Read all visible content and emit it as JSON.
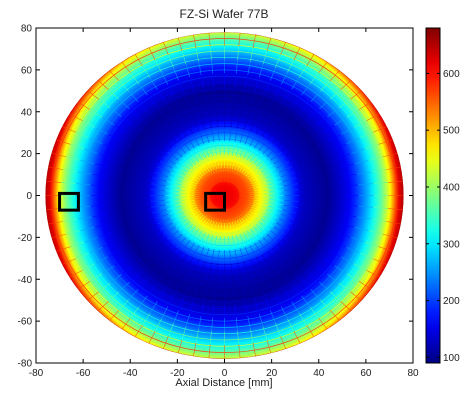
{
  "chart_data": {
    "type": "heatmap",
    "title": "FZ-Si Wafer 77B",
    "xlabel": "Axial Distance [mm]",
    "ylabel": "",
    "xlim": [
      -80,
      80
    ],
    "ylim": [
      -80,
      80
    ],
    "x_ticks": [
      -80,
      -60,
      -40,
      -20,
      0,
      20,
      40,
      60,
      80
    ],
    "y_ticks": [
      -80,
      -60,
      -40,
      -20,
      0,
      20,
      40,
      60,
      80
    ],
    "x_tick_labels": [
      "-80",
      "-60",
      "-40",
      "-20",
      "0",
      "20",
      "40",
      "60",
      "80"
    ],
    "y_tick_labels": [
      "-80",
      "-60",
      "-40",
      "-20",
      "0",
      "20",
      "40",
      "60",
      "80"
    ],
    "colorbar": {
      "range": [
        90,
        680
      ],
      "ticks": [
        100,
        200,
        300,
        400,
        500,
        600
      ],
      "tick_labels": [
        "100",
        "200",
        "300",
        "400",
        "500",
        "600"
      ],
      "colormap": "jet"
    },
    "wafer": {
      "center": [
        0,
        0
      ],
      "radius_x_mm": 76,
      "radius_y_mm": 78
    },
    "radial_profile": [
      {
        "r": 0,
        "value": 640
      },
      {
        "r": 10,
        "value": 560
      },
      {
        "r": 18,
        "value": 420
      },
      {
        "r": 26,
        "value": 250
      },
      {
        "r": 34,
        "value": 130
      },
      {
        "r": 45,
        "value": 100
      },
      {
        "r": 55,
        "value": 160
      },
      {
        "r": 62,
        "value": 260
      },
      {
        "r": 68,
        "value": 360
      },
      {
        "r": 72,
        "value": 450
      },
      {
        "r": 76,
        "value": 620
      },
      {
        "r": 78,
        "value": 650
      }
    ],
    "markers": [
      {
        "name": "edge-measurement-box",
        "x": -66,
        "y": -3,
        "size": 8
      },
      {
        "name": "center-measurement-box",
        "x": -4,
        "y": -3,
        "size": 8
      }
    ],
    "grid": false,
    "legend": "none"
  }
}
